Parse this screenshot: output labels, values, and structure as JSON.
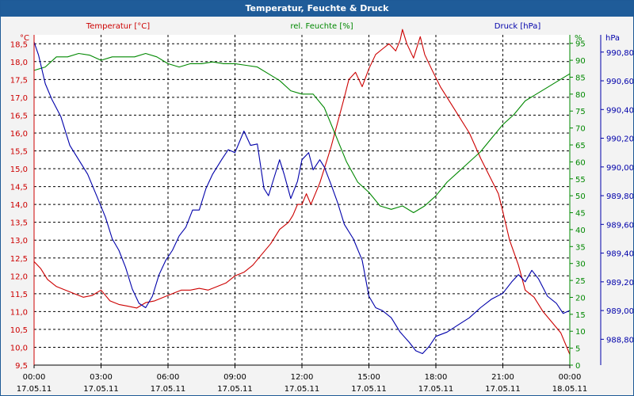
{
  "window": {
    "title": "Temperatur, Feuchte & Druck"
  },
  "colors": {
    "temperature": "#cc0000",
    "humidity": "#008800",
    "pressure": "#0000aa",
    "grid": "#000000",
    "titlebar": "#1f5c99"
  },
  "chart_data": {
    "type": "line",
    "title": "Temperatur, Feuchte & Druck",
    "grid": true,
    "x": {
      "tick_times": [
        "00:00",
        "03:00",
        "06:00",
        "09:00",
        "12:00",
        "15:00",
        "18:00",
        "21:00",
        "00:00"
      ],
      "tick_dates": [
        "17.05.11",
        "17.05.11",
        "17.05.11",
        "17.05.11",
        "17.05.11",
        "17.05.11",
        "17.05.11",
        "17.05.11",
        "18.05.11"
      ],
      "range_hours": [
        0,
        24
      ]
    },
    "axes": {
      "temperature": {
        "label": "Temperatur [°C]",
        "unit": "°C",
        "range": [
          9.5,
          18.75
        ],
        "ticks": [
          "18,5",
          "18,0",
          "17,5",
          "17,0",
          "16,5",
          "16,0",
          "15,5",
          "15,0",
          "14,5",
          "14,0",
          "13,5",
          "13,0",
          "12,5",
          "12,0",
          "11,5",
          "11,0",
          "10,5",
          "10,0",
          "9,5"
        ],
        "tick_values": [
          18.5,
          18.0,
          17.5,
          17.0,
          16.5,
          16.0,
          15.5,
          15.0,
          14.5,
          14.0,
          13.5,
          13.0,
          12.5,
          12.0,
          11.5,
          11.0,
          10.5,
          10.0,
          9.5
        ]
      },
      "humidity": {
        "label": "rel. Feuchte [%]",
        "unit": "%",
        "range": [
          0,
          97.5
        ],
        "ticks": [
          "95",
          "90",
          "85",
          "80",
          "75",
          "70",
          "65",
          "60",
          "55",
          "50",
          "45",
          "40",
          "35",
          "30",
          "25",
          "20",
          "15",
          "10",
          "5",
          "0"
        ],
        "tick_values": [
          95,
          90,
          85,
          80,
          75,
          70,
          65,
          60,
          55,
          50,
          45,
          40,
          35,
          30,
          25,
          20,
          15,
          10,
          5,
          0
        ]
      },
      "pressure": {
        "label": "Druck [hPa]",
        "unit": "hPa",
        "range": [
          988.62,
          990.92
        ],
        "ticks": [
          "990,80",
          "990,60",
          "990,40",
          "990,20",
          "990,00",
          "989,80",
          "989,60",
          "989,40",
          "989,20",
          "989,00",
          "988,80"
        ],
        "tick_values": [
          990.8,
          990.6,
          990.4,
          990.2,
          990.0,
          989.8,
          989.6,
          989.4,
          989.2,
          989.0,
          988.8
        ]
      }
    },
    "series": [
      {
        "name": "Temperatur [°C]",
        "axis": "temperature",
        "points": [
          [
            0,
            12.4
          ],
          [
            0.3,
            12.2
          ],
          [
            0.6,
            11.9
          ],
          [
            1.0,
            11.7
          ],
          [
            1.4,
            11.6
          ],
          [
            1.8,
            11.5
          ],
          [
            2.2,
            11.4
          ],
          [
            2.6,
            11.45
          ],
          [
            3.0,
            11.6
          ],
          [
            3.4,
            11.3
          ],
          [
            3.8,
            11.2
          ],
          [
            4.2,
            11.15
          ],
          [
            4.6,
            11.1
          ],
          [
            5.0,
            11.25
          ],
          [
            5.4,
            11.3
          ],
          [
            5.8,
            11.4
          ],
          [
            6.2,
            11.5
          ],
          [
            6.6,
            11.6
          ],
          [
            7.0,
            11.6
          ],
          [
            7.4,
            11.65
          ],
          [
            7.8,
            11.6
          ],
          [
            8.2,
            11.7
          ],
          [
            8.6,
            11.8
          ],
          [
            9.0,
            12.0
          ],
          [
            9.4,
            12.1
          ],
          [
            9.8,
            12.3
          ],
          [
            10.2,
            12.6
          ],
          [
            10.6,
            12.9
          ],
          [
            11.0,
            13.3
          ],
          [
            11.4,
            13.5
          ],
          [
            11.6,
            13.7
          ],
          [
            11.8,
            14.0
          ],
          [
            12.0,
            14.0
          ],
          [
            12.2,
            14.3
          ],
          [
            12.4,
            14.0
          ],
          [
            12.6,
            14.3
          ],
          [
            12.8,
            14.6
          ],
          [
            13.0,
            15.0
          ],
          [
            13.3,
            15.6
          ],
          [
            13.6,
            16.3
          ],
          [
            13.9,
            17.0
          ],
          [
            14.1,
            17.5
          ],
          [
            14.4,
            17.7
          ],
          [
            14.7,
            17.3
          ],
          [
            15.0,
            17.8
          ],
          [
            15.3,
            18.2
          ],
          [
            15.6,
            18.35
          ],
          [
            15.9,
            18.5
          ],
          [
            16.2,
            18.3
          ],
          [
            16.4,
            18.6
          ],
          [
            16.5,
            18.9
          ],
          [
            16.7,
            18.5
          ],
          [
            17.0,
            18.1
          ],
          [
            17.3,
            18.7
          ],
          [
            17.5,
            18.2
          ],
          [
            17.8,
            17.8
          ],
          [
            18.2,
            17.3
          ],
          [
            18.6,
            16.9
          ],
          [
            19.0,
            16.5
          ],
          [
            19.5,
            16.0
          ],
          [
            20.0,
            15.3
          ],
          [
            20.4,
            14.8
          ],
          [
            20.8,
            14.3
          ],
          [
            21.0,
            13.8
          ],
          [
            21.3,
            13.0
          ],
          [
            21.7,
            12.3
          ],
          [
            22.0,
            11.6
          ],
          [
            22.4,
            11.4
          ],
          [
            22.8,
            11.0
          ],
          [
            23.2,
            10.7
          ],
          [
            23.6,
            10.4
          ],
          [
            24.0,
            9.8
          ]
        ]
      },
      {
        "name": "rel. Feuchte [%]",
        "axis": "humidity",
        "points": [
          [
            0,
            87
          ],
          [
            0.5,
            88
          ],
          [
            1.0,
            91
          ],
          [
            1.5,
            91
          ],
          [
            2.0,
            92
          ],
          [
            2.5,
            91.5
          ],
          [
            3.0,
            90
          ],
          [
            3.5,
            91
          ],
          [
            4.0,
            91
          ],
          [
            4.5,
            91
          ],
          [
            5.0,
            92
          ],
          [
            5.5,
            91
          ],
          [
            6.0,
            89
          ],
          [
            6.5,
            88
          ],
          [
            7.0,
            89
          ],
          [
            7.5,
            89
          ],
          [
            8.0,
            89.5
          ],
          [
            8.5,
            89
          ],
          [
            9.0,
            89
          ],
          [
            9.5,
            88.5
          ],
          [
            10.0,
            88
          ],
          [
            10.5,
            86
          ],
          [
            11.0,
            84
          ],
          [
            11.5,
            81
          ],
          [
            12.0,
            80
          ],
          [
            12.5,
            80
          ],
          [
            13.0,
            76
          ],
          [
            13.5,
            68
          ],
          [
            14.0,
            60
          ],
          [
            14.5,
            54
          ],
          [
            15.0,
            51
          ],
          [
            15.5,
            47
          ],
          [
            16.0,
            46
          ],
          [
            16.5,
            47
          ],
          [
            17.0,
            45
          ],
          [
            17.5,
            47
          ],
          [
            18.0,
            50
          ],
          [
            18.5,
            54
          ],
          [
            19.0,
            57
          ],
          [
            19.5,
            60
          ],
          [
            20.0,
            63
          ],
          [
            20.5,
            67
          ],
          [
            21.0,
            71
          ],
          [
            21.5,
            74
          ],
          [
            22.0,
            78
          ],
          [
            22.5,
            80
          ],
          [
            23.0,
            82
          ],
          [
            23.5,
            84
          ],
          [
            24.0,
            86
          ]
        ]
      },
      {
        "name": "Druck [hPa]",
        "axis": "pressure",
        "points": [
          [
            0,
            990.87
          ],
          [
            0.2,
            990.78
          ],
          [
            0.5,
            990.58
          ],
          [
            0.8,
            990.47
          ],
          [
            1.2,
            990.35
          ],
          [
            1.6,
            990.15
          ],
          [
            2.0,
            990.05
          ],
          [
            2.4,
            989.95
          ],
          [
            2.8,
            989.8
          ],
          [
            3.2,
            989.65
          ],
          [
            3.5,
            989.5
          ],
          [
            3.8,
            989.42
          ],
          [
            4.1,
            989.3
          ],
          [
            4.4,
            989.15
          ],
          [
            4.7,
            989.05
          ],
          [
            5.0,
            989.02
          ],
          [
            5.3,
            989.1
          ],
          [
            5.6,
            989.25
          ],
          [
            5.9,
            989.35
          ],
          [
            6.2,
            989.42
          ],
          [
            6.5,
            989.52
          ],
          [
            6.8,
            989.58
          ],
          [
            7.1,
            989.7
          ],
          [
            7.4,
            989.7
          ],
          [
            7.7,
            989.85
          ],
          [
            8.0,
            989.95
          ],
          [
            8.4,
            990.05
          ],
          [
            8.7,
            990.12
          ],
          [
            9.0,
            990.1
          ],
          [
            9.4,
            990.25
          ],
          [
            9.7,
            990.15
          ],
          [
            10.0,
            990.16
          ],
          [
            10.3,
            989.85
          ],
          [
            10.5,
            989.8
          ],
          [
            10.8,
            989.95
          ],
          [
            11.0,
            990.05
          ],
          [
            11.2,
            989.95
          ],
          [
            11.5,
            989.78
          ],
          [
            11.8,
            989.9
          ],
          [
            12.0,
            990.05
          ],
          [
            12.3,
            990.1
          ],
          [
            12.5,
            989.98
          ],
          [
            12.8,
            990.05
          ],
          [
            13.0,
            990.0
          ],
          [
            13.3,
            989.88
          ],
          [
            13.6,
            989.75
          ],
          [
            13.9,
            989.6
          ],
          [
            14.3,
            989.5
          ],
          [
            14.7,
            989.35
          ],
          [
            15.0,
            989.1
          ],
          [
            15.3,
            989.02
          ],
          [
            15.6,
            989.0
          ],
          [
            16.0,
            988.95
          ],
          [
            16.4,
            988.85
          ],
          [
            16.8,
            988.78
          ],
          [
            17.1,
            988.72
          ],
          [
            17.4,
            988.7
          ],
          [
            17.7,
            988.75
          ],
          [
            18.0,
            988.82
          ],
          [
            18.5,
            988.85
          ],
          [
            19.0,
            988.9
          ],
          [
            19.5,
            988.95
          ],
          [
            20.0,
            989.02
          ],
          [
            20.5,
            989.08
          ],
          [
            21.0,
            989.12
          ],
          [
            21.4,
            989.2
          ],
          [
            21.7,
            989.25
          ],
          [
            22.0,
            989.2
          ],
          [
            22.3,
            989.28
          ],
          [
            22.6,
            989.22
          ],
          [
            23.0,
            989.1
          ],
          [
            23.4,
            989.05
          ],
          [
            23.7,
            988.98
          ],
          [
            24.0,
            989.0
          ]
        ]
      }
    ]
  }
}
